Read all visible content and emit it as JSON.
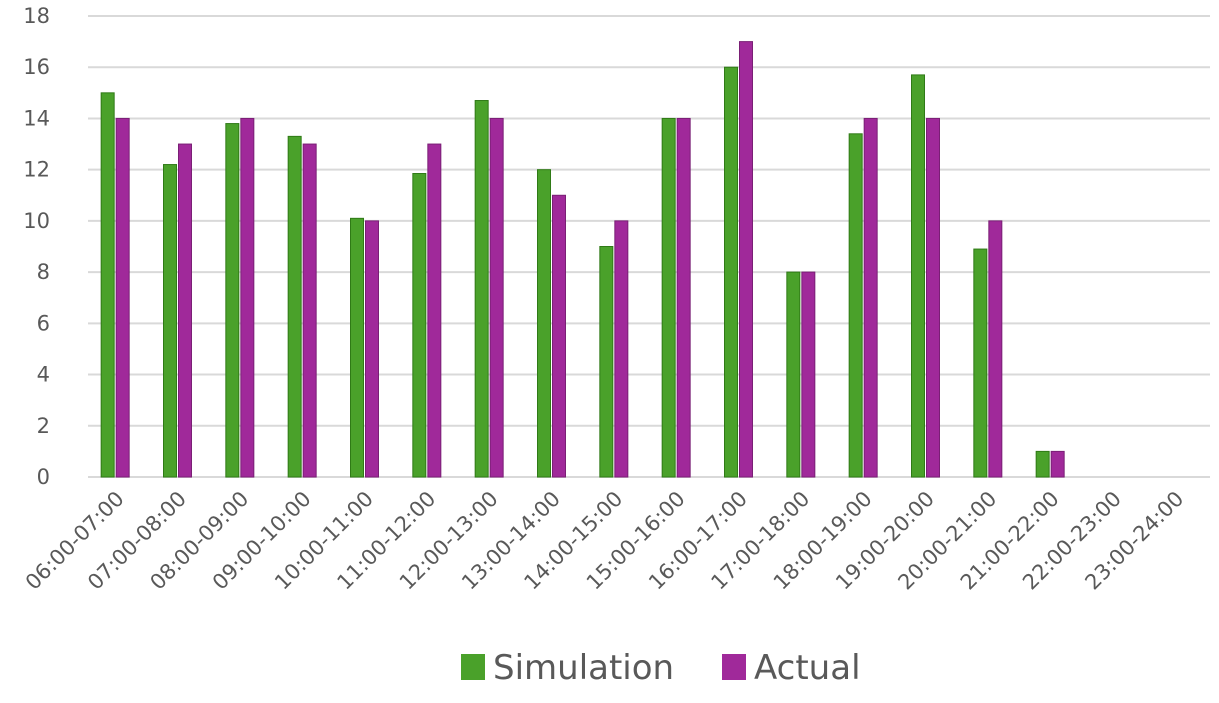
{
  "chart_data": {
    "type": "bar",
    "title": "",
    "xlabel": "",
    "ylabel": "",
    "ylim": [
      0,
      18
    ],
    "yticks": [
      0,
      2,
      4,
      6,
      8,
      10,
      12,
      14,
      16,
      18
    ],
    "grid": true,
    "legend_position": "bottom",
    "categories": [
      "06:00-07:00",
      "07:00-08:00",
      "08:00-09:00",
      "09:00-10:00",
      "10:00-11:00",
      "11:00-12:00",
      "12:00-13:00",
      "13:00-14:00",
      "14:00-15:00",
      "15:00-16:00",
      "16:00-17:00",
      "17:00-18:00",
      "18:00-19:00",
      "19:00-20:00",
      "20:00-21:00",
      "21:00-22:00",
      "22:00-23:00",
      "23:00-24:00"
    ],
    "series": [
      {
        "name": "Simulation",
        "color": "#4aa12a",
        "edge": "#2f7a16",
        "values": [
          15,
          12.2,
          13.8,
          13.3,
          10.1,
          11.85,
          14.7,
          12,
          9,
          14,
          16,
          8,
          13.4,
          15.7,
          8.9,
          1,
          0,
          0
        ]
      },
      {
        "name": "Actual",
        "color": "#a0299a",
        "edge": "#7a1f75",
        "values": [
          14,
          13,
          14,
          13,
          10,
          13,
          14,
          11,
          10,
          14,
          17,
          8,
          14,
          14,
          10,
          1,
          0,
          0
        ]
      }
    ]
  }
}
